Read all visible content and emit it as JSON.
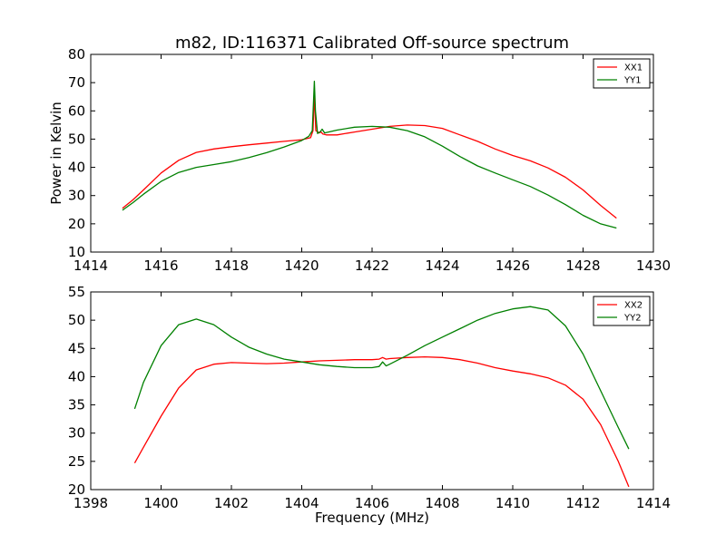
{
  "figure": {
    "title": "m82, ID:116371 Calibrated Off-source spectrum",
    "ylabel": "Power in Kelvin",
    "xlabel": "Frequency (MHz)"
  },
  "chart_data": [
    {
      "type": "line",
      "title": "m82, ID:116371 Calibrated Off-source spectrum",
      "xlabel": "",
      "ylabel": "Power in Kelvin",
      "xlim": [
        1414,
        1430
      ],
      "ylim": [
        10,
        80
      ],
      "xticks": [
        1414,
        1416,
        1418,
        1420,
        1422,
        1424,
        1426,
        1428,
        1430
      ],
      "yticks": [
        10,
        20,
        30,
        40,
        50,
        60,
        70,
        80
      ],
      "legend": "top-right",
      "series": [
        {
          "name": "XX1",
          "color": "#ff0000",
          "x": [
            1414.9,
            1415.2,
            1415.5,
            1416.0,
            1416.5,
            1417.0,
            1417.5,
            1418.0,
            1418.5,
            1419.0,
            1419.5,
            1420.0,
            1420.25,
            1420.32,
            1420.36,
            1420.4,
            1420.5,
            1420.55,
            1420.6,
            1420.7,
            1421.0,
            1421.5,
            1422.0,
            1422.5,
            1423.0,
            1423.5,
            1424.0,
            1424.5,
            1425.0,
            1425.5,
            1426.0,
            1426.5,
            1427.0,
            1427.5,
            1428.0,
            1428.5,
            1428.95
          ],
          "y": [
            25.5,
            28.5,
            32,
            38,
            42.5,
            45.3,
            46.5,
            47.3,
            48,
            48.6,
            49.2,
            49.8,
            50.5,
            53,
            66,
            53,
            52.2,
            52.5,
            51.8,
            51.5,
            51.5,
            52.5,
            53.5,
            54.5,
            55,
            54.8,
            53.8,
            51.5,
            49.2,
            46.5,
            44.2,
            42.3,
            39.8,
            36.5,
            32,
            26.5,
            22
          ]
        },
        {
          "name": "YY1",
          "color": "#008000",
          "x": [
            1414.9,
            1415.2,
            1415.5,
            1416.0,
            1416.5,
            1417.0,
            1417.5,
            1418.0,
            1418.5,
            1419.0,
            1419.5,
            1420.0,
            1420.2,
            1420.3,
            1420.33,
            1420.36,
            1420.39,
            1420.45,
            1420.52,
            1420.58,
            1420.65,
            1421.0,
            1421.5,
            1422.0,
            1422.5,
            1423.0,
            1423.5,
            1424.0,
            1424.5,
            1425.0,
            1425.5,
            1426.0,
            1426.5,
            1427.0,
            1427.5,
            1428.0,
            1428.5,
            1428.95
          ],
          "y": [
            24.8,
            27.5,
            30.5,
            35,
            38.2,
            40,
            41,
            42,
            43.5,
            45.2,
            47.2,
            49.5,
            51,
            53,
            62,
            70.5,
            60,
            52,
            52.5,
            53.5,
            52.2,
            53.2,
            54.2,
            54.5,
            54.2,
            53,
            50.8,
            47.5,
            43.8,
            40.5,
            38,
            35.6,
            33.2,
            30.2,
            26.8,
            23,
            20,
            18.5
          ]
        }
      ]
    },
    {
      "type": "line",
      "title": "",
      "xlabel": "Frequency (MHz)",
      "ylabel": "",
      "xlim": [
        1398,
        1414
      ],
      "ylim": [
        20,
        55
      ],
      "xticks": [
        1398,
        1400,
        1402,
        1404,
        1406,
        1408,
        1410,
        1412,
        1414
      ],
      "yticks": [
        20,
        25,
        30,
        35,
        40,
        45,
        50,
        55
      ],
      "legend": "top-right",
      "series": [
        {
          "name": "XX2",
          "color": "#ff0000",
          "x": [
            1399.25,
            1399.5,
            1400.0,
            1400.5,
            1401.0,
            1401.5,
            1402.0,
            1402.5,
            1403.0,
            1403.5,
            1404.0,
            1404.5,
            1405.0,
            1405.5,
            1406.0,
            1406.2,
            1406.3,
            1406.4,
            1406.5,
            1407.0,
            1407.5,
            1408.0,
            1408.5,
            1409.0,
            1409.5,
            1410.0,
            1410.5,
            1411.0,
            1411.5,
            1412.0,
            1412.5,
            1413.0,
            1413.3
          ],
          "y": [
            24.7,
            27.5,
            33,
            38,
            41.2,
            42.2,
            42.5,
            42.4,
            42.3,
            42.4,
            42.6,
            42.8,
            42.9,
            43,
            43,
            43.1,
            43.4,
            43.1,
            43.2,
            43.4,
            43.5,
            43.4,
            43,
            42.4,
            41.6,
            41,
            40.5,
            39.8,
            38.5,
            36,
            31.5,
            25,
            20.5
          ]
        },
        {
          "name": "YY2",
          "color": "#008000",
          "x": [
            1399.25,
            1399.5,
            1400.0,
            1400.5,
            1401.0,
            1401.5,
            1402.0,
            1402.5,
            1403.0,
            1403.5,
            1404.0,
            1404.5,
            1405.0,
            1405.5,
            1406.0,
            1406.2,
            1406.3,
            1406.4,
            1406.5,
            1407.0,
            1407.5,
            1408.0,
            1408.5,
            1409.0,
            1409.5,
            1410.0,
            1410.5,
            1411.0,
            1411.5,
            1412.0,
            1412.5,
            1413.0,
            1413.3
          ],
          "y": [
            34.3,
            39,
            45.5,
            49.2,
            50.2,
            49.2,
            47,
            45.2,
            44,
            43.1,
            42.6,
            42.1,
            41.8,
            41.6,
            41.6,
            41.8,
            42.6,
            41.9,
            42.2,
            43.8,
            45.5,
            47,
            48.5,
            50,
            51.2,
            52,
            52.4,
            51.8,
            49,
            44,
            37.5,
            31,
            27.2
          ]
        }
      ]
    }
  ]
}
